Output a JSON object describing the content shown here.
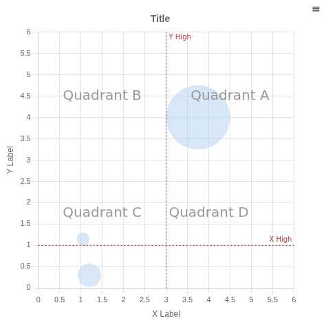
{
  "chart_data": {
    "type": "bubble",
    "title": "Title",
    "xlabel": "X Label",
    "ylabel": "Y Label",
    "xlim": [
      0,
      6
    ],
    "ylim": [
      0,
      6
    ],
    "xticks": [
      0,
      0.5,
      1,
      1.5,
      2,
      2.5,
      3,
      3.5,
      4,
      4.5,
      5,
      5.5,
      6
    ],
    "yticks": [
      0,
      0.5,
      1,
      1.5,
      2,
      2.5,
      3,
      3.5,
      4,
      4.5,
      5,
      5.5,
      6
    ],
    "grid": true,
    "x": [
      3.75,
      1.05,
      1.2
    ],
    "values": [
      4.0,
      1.15,
      0.3
    ],
    "sizes": [
      4500,
      180,
      600
    ],
    "color": "#b8d4f0",
    "lines": [
      {
        "x": 3,
        "label": "Y High",
        "color": "#cc3333"
      },
      {
        "y": 1,
        "label": "X High",
        "color": "#cc3333"
      }
    ],
    "annotations": [
      {
        "text": "Quadrant A",
        "x": 4.5,
        "y": 4.5
      },
      {
        "text": "Quadrant B",
        "x": 1.5,
        "y": 4.5
      },
      {
        "text": "Quadrant C",
        "x": 1.5,
        "y": 1.75
      },
      {
        "text": "Quadrant D",
        "x": 4.0,
        "y": 1.75
      },
      {
        "text": "≡"
      }
    ]
  }
}
